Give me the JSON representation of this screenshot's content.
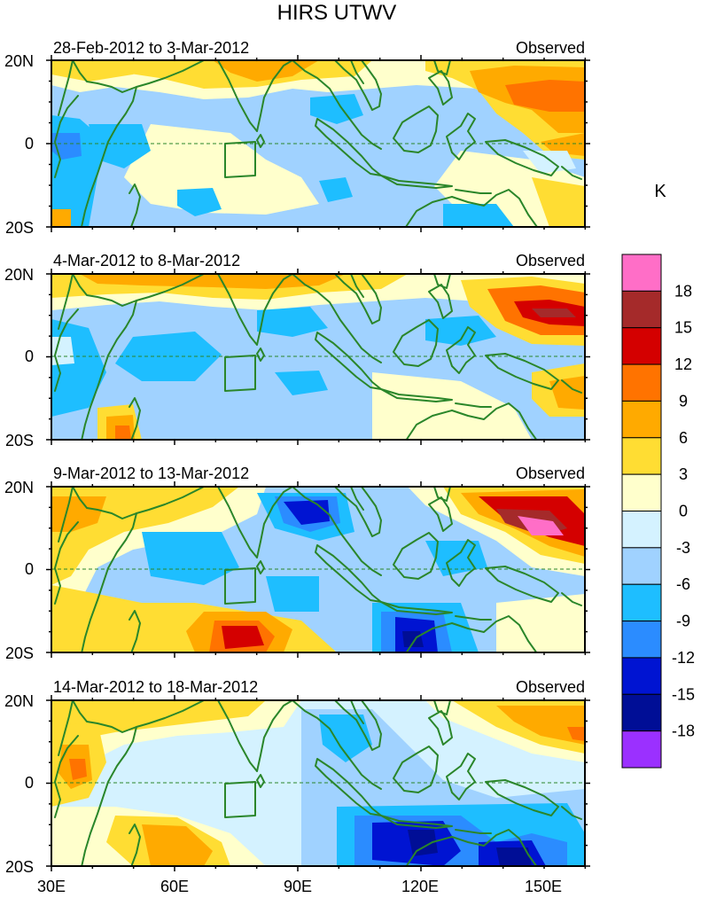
{
  "title": "HIRS UTWV",
  "units": "K",
  "lat_labels": [
    "20N",
    "0",
    "20S"
  ],
  "lon_labels": [
    "30E",
    "60E",
    "90E",
    "120E",
    "150E"
  ],
  "panels": [
    {
      "date_range": "28-Feb-2012 to 3-Mar-2012",
      "label": "Observed"
    },
    {
      "date_range": "4-Mar-2012 to 8-Mar-2012",
      "label": "Observed"
    },
    {
      "date_range": "9-Mar-2012 to 13-Mar-2012",
      "label": "Observed"
    },
    {
      "date_range": "14-Mar-2012 to 18-Mar-2012",
      "label": "Observed"
    }
  ],
  "colorbar": {
    "tick_labels": [
      "18",
      "15",
      "12",
      "9",
      "6",
      "3",
      "0",
      "-3",
      "-6",
      "-9",
      "-12",
      "-15",
      "-18"
    ],
    "colors_top_to_bottom": [
      "#ff6ec7",
      "#a52a2a",
      "#d40000",
      "#ff7300",
      "#ffaa00",
      "#ffdd33",
      "#ffffcc",
      "#d4f2ff",
      "#a0d2ff",
      "#1ebeff",
      "#2b8cff",
      "#0014d2",
      "#000e96",
      "#9b30ff"
    ]
  },
  "map_colors": {
    "land_outline": "#2a862a",
    "pos_3": "#ffdd33",
    "pos_6": "#ffaa00",
    "pos_9": "#ff7300",
    "pos_12": "#d40000",
    "pos_15": "#a52a2a",
    "pos_18": "#ff6ec7",
    "zero_pos": "#ffffcc",
    "zero_neg": "#d4f2ff",
    "neg_3": "#a0d2ff",
    "neg_6": "#1ebeff",
    "neg_9": "#2b8cff",
    "neg_12": "#0014d2",
    "neg_15": "#000e96"
  }
}
